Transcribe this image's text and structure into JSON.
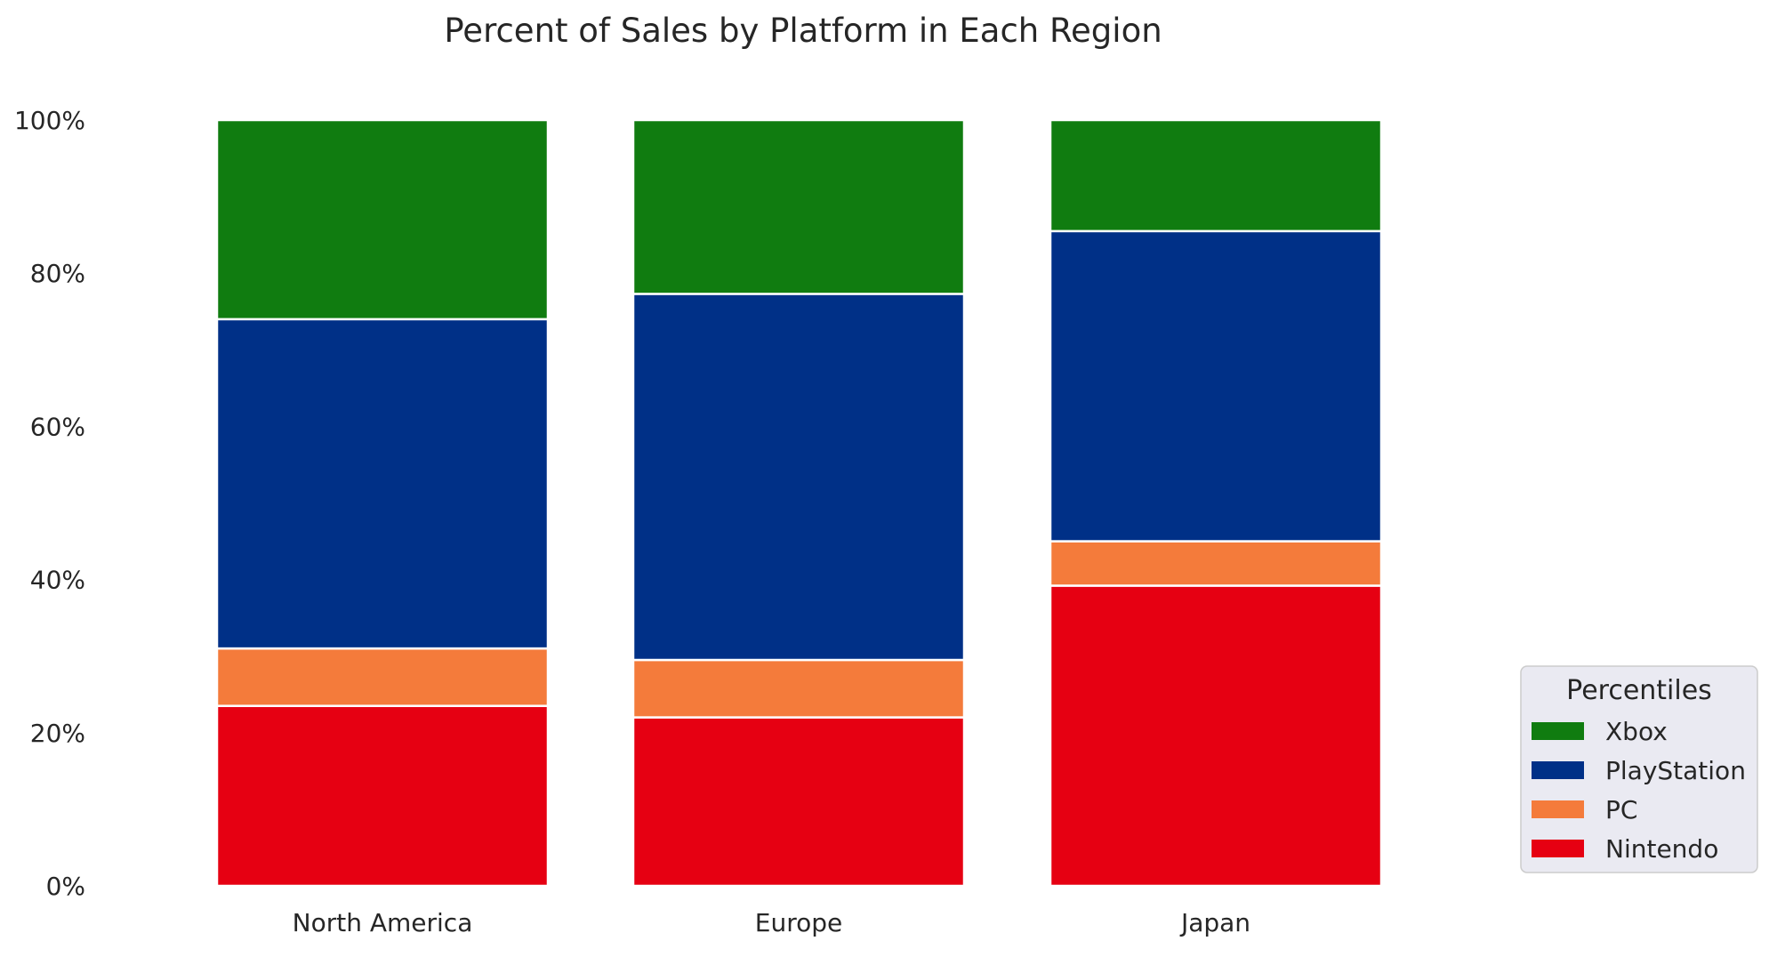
{
  "chart_data": {
    "type": "bar",
    "stacked": true,
    "title": "Percent of Sales by Platform in Each Region",
    "categories": [
      "North America",
      "Europe",
      "Japan"
    ],
    "series": [
      {
        "name": "Nintendo",
        "values": [
          23.5,
          22.0,
          39.2
        ],
        "color": "#e60012"
      },
      {
        "name": "PC",
        "values": [
          7.5,
          7.5,
          5.8
        ],
        "color": "#f47b3b"
      },
      {
        "name": "PlayStation",
        "values": [
          43.0,
          47.8,
          40.5
        ],
        "color": "#003087"
      },
      {
        "name": "Xbox",
        "values": [
          26.0,
          22.7,
          14.5
        ],
        "color": "#107c10"
      }
    ],
    "ylim": [
      0,
      100
    ],
    "yticks": [
      "0%",
      "20%",
      "40%",
      "60%",
      "80%",
      "100%"
    ],
    "grid": false,
    "legend": {
      "title": "Percentiles",
      "placement": "lower-right outside",
      "order": [
        "Xbox",
        "PlayStation",
        "PC",
        "Nintendo"
      ]
    }
  }
}
